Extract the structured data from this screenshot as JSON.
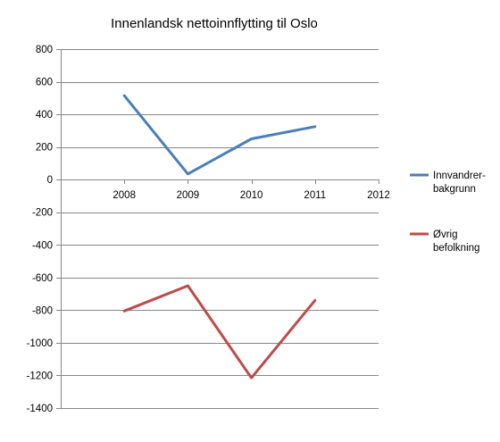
{
  "chart_data": {
    "type": "line",
    "title": "Innenlandsk nettoinnflytting til Oslo",
    "x_categories": [
      "",
      "2008",
      "2009",
      "2010",
      "2011",
      "2012"
    ],
    "y_ticks": [
      800,
      600,
      400,
      200,
      0,
      -200,
      -400,
      -600,
      -800,
      -1000,
      -1200,
      -1400
    ],
    "ylim": [
      -1400,
      800
    ],
    "grid": true,
    "legend_position": "right",
    "series": [
      {
        "name_lines": [
          "Innvandrer-",
          "bakgrunn"
        ],
        "color": "#4a7ebb",
        "x": [
          "2008",
          "2009",
          "2010",
          "2011"
        ],
        "values": [
          515,
          35,
          250,
          325
        ]
      },
      {
        "name_lines": [
          "Øvrig",
          "befolkning"
        ],
        "color": "#be4b48",
        "x": [
          "2008",
          "2009",
          "2010",
          "2011"
        ],
        "values": [
          -805,
          -650,
          -1215,
          -740
        ]
      }
    ]
  }
}
